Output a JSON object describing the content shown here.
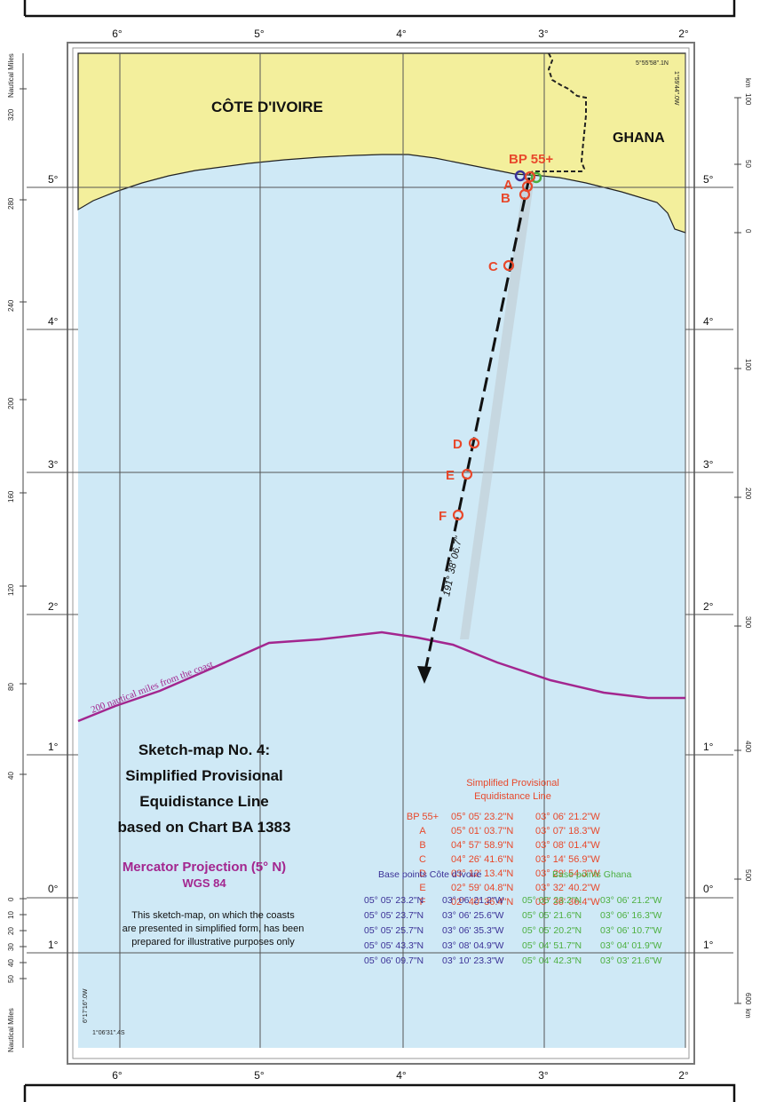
{
  "labels": {
    "country_1": "CÔTE D'IVOIRE",
    "country_2": "GHANA",
    "bp_label": "BP 55+",
    "bearing": "191° 38' 06.7\"",
    "limit_200nm": "200 nautical miles from the coast",
    "corner_top_right_1": "5°55'58\".1N",
    "corner_top_right_2": "1°59'44\".0W",
    "corner_bottom_left_1": "6°17'16\".0W",
    "corner_bottom_left_2": "1°06'31\".4S"
  },
  "points": {
    "A": "A",
    "B": "B",
    "C": "C",
    "D": "D",
    "E": "E",
    "F": "F"
  },
  "lon_ticks": [
    "6°",
    "5°",
    "4°",
    "3°",
    "2°"
  ],
  "lat_ticks_left": [
    "5°",
    "4°",
    "3°",
    "2°",
    "1°",
    "0°",
    "1°"
  ],
  "lat_ticks_right": [
    "5°",
    "4°",
    "3°",
    "2°",
    "1°",
    "0°",
    "1°"
  ],
  "scale_nm": {
    "title_top": "Nautical Miles",
    "title_bottom": "Nautical Miles",
    "ticks": [
      "320",
      "280",
      "240",
      "200",
      "160",
      "120",
      "80",
      "40",
      "0",
      "10",
      "20",
      "30",
      "40",
      "50"
    ]
  },
  "scale_km": {
    "unit_top": "km",
    "unit_bottom": "km",
    "ticks": [
      "100",
      "50",
      "0",
      "100",
      "200",
      "300",
      "400",
      "500",
      "600"
    ]
  },
  "title": {
    "line1": "Sketch-map No. 4:",
    "line2": "Simplified Provisional",
    "line3": "Equidistance Line",
    "line4": "based on Chart BA 1383"
  },
  "projection": {
    "line1": "Mercator Projection (5° N)",
    "line2": "WGS 84"
  },
  "disclaimer": {
    "line1": "This sketch-map, on which the coasts",
    "line2": "are presented in simplified form, has been",
    "line3": "prepared for illustrative purposes only"
  },
  "equidistance_table": {
    "title_line1": "Simplified Provisional",
    "title_line2": "Equidistance Line",
    "rows": [
      {
        "point": "BP 55+",
        "lat": "05° 05' 23.2\"N",
        "lon": "03° 06' 21.2\"W"
      },
      {
        "point": "A",
        "lat": "05° 01' 03.7\"N",
        "lon": "03° 07' 18.3\"W"
      },
      {
        "point": "B",
        "lat": "04° 57' 58.9\"N",
        "lon": "03° 08' 01.4\"W"
      },
      {
        "point": "C",
        "lat": "04° 26' 41.6\"N",
        "lon": "03° 14' 56.9\"W"
      },
      {
        "point": "D",
        "lat": "03° 12' 13.4\"N",
        "lon": "03° 29' 54.3\"W"
      },
      {
        "point": "E",
        "lat": "02° 59' 04.8\"N",
        "lon": "03° 32' 40.2\"W"
      },
      {
        "point": "F",
        "lat": "02° 40' 36.4\"N",
        "lon": "03° 36' 36.4\"W"
      }
    ]
  },
  "base_points_civ": {
    "title": "Base points Côte d'Ivoire",
    "rows": [
      {
        "lat": "05° 05' 23.2\"N",
        "lon": "03° 06' 21.2\"W"
      },
      {
        "lat": "05° 05' 23.7\"N",
        "lon": "03° 06' 25.6\"W"
      },
      {
        "lat": "05° 05' 25.7\"N",
        "lon": "03° 06' 35.3\"W"
      },
      {
        "lat": "05° 05' 43.3\"N",
        "lon": "03° 08' 04.9\"W"
      },
      {
        "lat": "05° 06' 09.7\"N",
        "lon": "03° 10' 23.3\"W"
      }
    ]
  },
  "base_points_ghana": {
    "title": "Base points Ghana",
    "rows": [
      {
        "lat": "05° 05' 23.2\"N",
        "lon": "03° 06' 21.2\"W"
      },
      {
        "lat": "05° 05' 21.6\"N",
        "lon": "03° 06' 16.3\"W"
      },
      {
        "lat": "05° 05' 20.2\"N",
        "lon": "03° 06' 10.7\"W"
      },
      {
        "lat": "05° 04' 51.7\"N",
        "lon": "03° 04' 01.9\"W"
      },
      {
        "lat": "05° 04' 42.3\"N",
        "lon": "03° 03' 21.6\"W"
      }
    ]
  },
  "colors": {
    "sea": "#cfe9f6",
    "land": "#f3ef9c",
    "equidistance": "#e8482b",
    "civ": "#3a3096",
    "ghana": "#4caf3f",
    "limit_200nm": "#a3268f"
  }
}
